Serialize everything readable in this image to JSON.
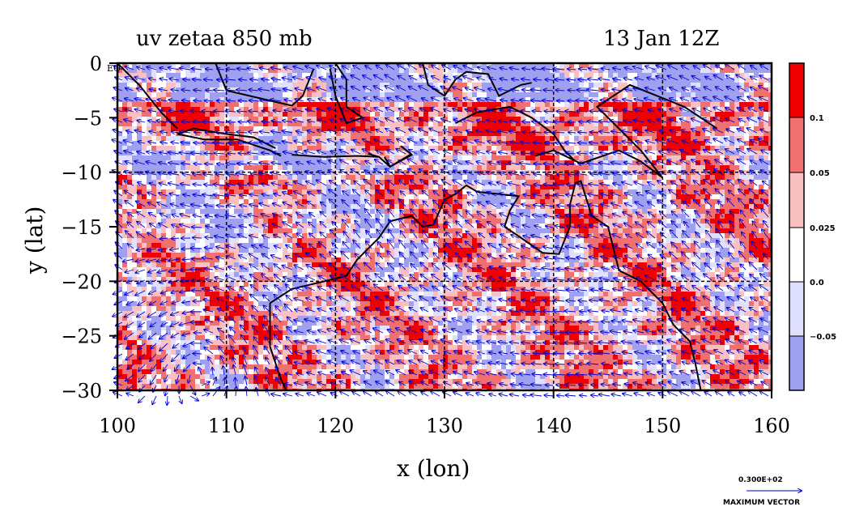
{
  "title": {
    "left": "uv zetaa 850 mb",
    "right": "13 Jan 12Z"
  },
  "axes": {
    "x_label": "x (lon)",
    "y_label": "y (lat)",
    "x_ticks": [
      "100",
      "110",
      "120",
      "130",
      "140",
      "150",
      "160"
    ],
    "y_ticks": [
      "0",
      "−5",
      "−10",
      "−15",
      "−20",
      "−25",
      "−30"
    ],
    "eq_label": "EQ",
    "x_range": [
      100,
      160
    ],
    "y_range": [
      -30,
      0
    ]
  },
  "colorbar": {
    "labels": [
      "0.1",
      "0.05",
      "0.025",
      "0.0",
      "−0.05"
    ],
    "colors": [
      "#f00000",
      "#f07070",
      "#f8c0c0",
      "#ffffff",
      "#e0e0ff",
      "#a0a0f0"
    ]
  },
  "vector_legend": {
    "magnitude": "0.300E+02",
    "caption": "MAXIMUM VECTOR"
  },
  "colors": {
    "vector": "#0000d0",
    "coast": "#000000",
    "grid": "#000000"
  }
}
